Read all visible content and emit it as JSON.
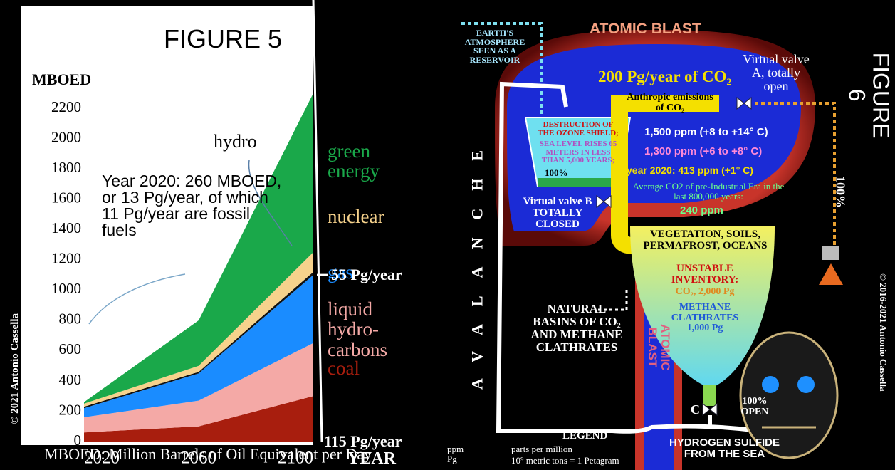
{
  "chart_data": {
    "type": "area",
    "title": "FIGURE 5",
    "ylabel": "MBOED",
    "xlabel": "YEAR",
    "x": [
      2020,
      2060,
      2100
    ],
    "xlim": [
      2020,
      2100
    ],
    "xticks": [
      2020,
      2060,
      2100
    ],
    "ylim": [
      0,
      2300
    ],
    "yticks": [
      0,
      200,
      400,
      600,
      800,
      1000,
      1200,
      1400,
      1600,
      1800,
      2000,
      2200
    ],
    "stacked": true,
    "series": [
      {
        "name": "coal",
        "color": "#a81e0e",
        "values": [
          60,
          100,
          300
        ]
      },
      {
        "name": "liquid hydro-carbons",
        "color": "#f4a9a6",
        "values": [
          100,
          170,
          350
        ]
      },
      {
        "name": "gas",
        "color": "#1a8cff",
        "values": [
          60,
          180,
          450
        ]
      },
      {
        "name": "hydro",
        "color": "#111111",
        "values": [
          10,
          10,
          20
        ]
      },
      {
        "name": "nuclear",
        "color": "#f6d28c",
        "values": [
          20,
          40,
          130
        ]
      },
      {
        "name": "green energy",
        "color": "#1aa84a",
        "values": [
          10,
          300,
          1050
        ]
      }
    ],
    "annotations": [
      "115 Pg/year",
      "55 Pg/year",
      "Year 2020: 260 MBOED, or 13 Pg/year, of which 11 Pg/year are fossil fuels"
    ],
    "footnote": "MBOED: Million Barrels of Oil Equivalent per Day",
    "credit": "© 2021 Antonio Cassella"
  },
  "figure6": {
    "title": "FIGURE 6",
    "atomic_blast_top": "ATOMIC BLAST",
    "atmosphere": "EARTH'S ATMOSPHERE SEEN AS A RESERVOIR",
    "emissions_total": "200 Pg/year of CO₂",
    "valve_a": "Virtual valve A, totally open",
    "anthropic": "Anthropic emissions of CO₂",
    "ozone": "DESTRUCTION OF THE OZONE SHIELD;",
    "sea_level": "SEA LEVEL RISES 65 METERS IN LESS THAN 5,000 YEARS;",
    "cone_percent": "100%",
    "ppm_1500": "1,500 ppm (+8 to +14° C)",
    "ppm_1300": "1,300 ppm (+6 to +8° C)",
    "ppm_2020": "year 2020: 413 ppm (+1° C)",
    "preindustrial": "Average CO2 of pre-Industrial Era in the last 800,000 years:",
    "ppm_240": "240 ppm",
    "valve_b": "Virtual valve B TOTALLY CLOSED",
    "vegetation": "VEGETATION, SOILS, PERMAFROST, OCEANS",
    "unstable": "UNSTABLE INVENTORY:",
    "co2_inventory": "CO₂, 2,000 Pg",
    "methane_inventory": "METHANE CLATHRATES 1,000 Pg",
    "natural_basins": "NATURAL BASINS OF CO₂ AND METHANE CLATHRATES",
    "atomic_blast_stem": "ATOMIC BLAST",
    "avalanche": "AVALANCHE",
    "side_percent": "100%",
    "valve_c": "C",
    "valve_c_state": "100% OPEN",
    "legend_title": "LEGEND",
    "legend_ppm": "ppm",
    "legend_ppm_text": "parts per million",
    "legend_pg": "Pg",
    "legend_pg_text": "10⁹ metric tons = 1 Petagram",
    "hydrogen_sulfide": "HYDROGEN SULFIDE FROM THE SEA",
    "credit": "© 2016-2021 Antonio Cassella"
  }
}
